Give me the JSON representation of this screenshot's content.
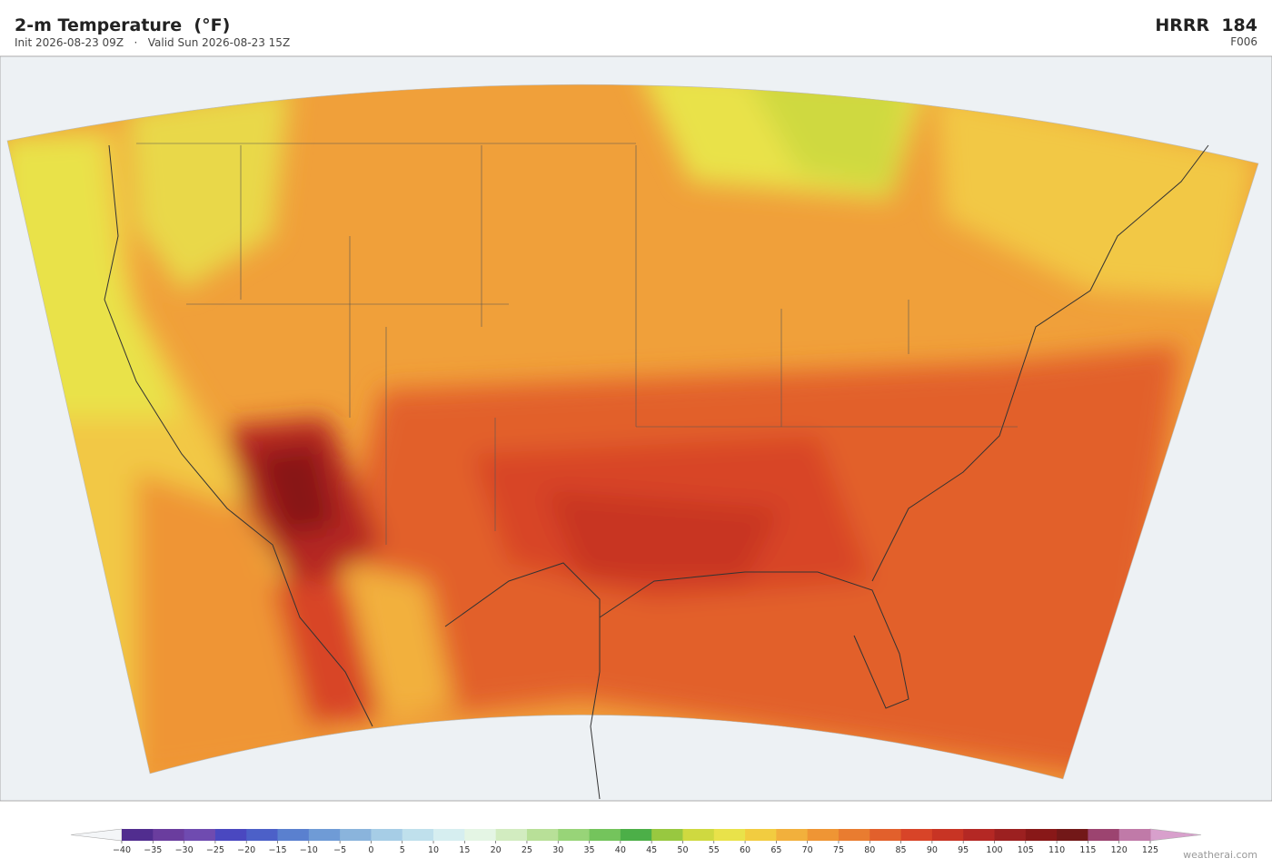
{
  "header": {
    "title": "2-m Temperature  (°F)",
    "subtitle": "Init 2026-08-23 09Z   ·   Valid Sun 2026-08-23 15Z",
    "model": "HRRR  184",
    "forecast_hour": "F006"
  },
  "colorbar": {
    "ticks": [
      {
        "value": -40,
        "label": "−40"
      },
      {
        "value": -35,
        "label": "−35"
      },
      {
        "value": -30,
        "label": "−30"
      },
      {
        "value": -25,
        "label": "−25"
      },
      {
        "value": -20,
        "label": "−20"
      },
      {
        "value": -15,
        "label": "−15"
      },
      {
        "value": -10,
        "label": "−10"
      },
      {
        "value": -5,
        "label": "−5"
      },
      0,
      5,
      10,
      15,
      20,
      25,
      30,
      35,
      40,
      45,
      50,
      55,
      60,
      65,
      70,
      75,
      80,
      85,
      90,
      95,
      100,
      105,
      110,
      115,
      120,
      125
    ],
    "colors": [
      "#512d8f",
      "#6a3d9e",
      "#6f4bb0",
      "#4a48c0",
      "#4c60c8",
      "#5a80cf",
      "#6f9bd6",
      "#8ab4dc",
      "#a6cde6",
      "#bfe0ec",
      "#d6eef0",
      "#e4f5e4",
      "#d2ecc0",
      "#b8e098",
      "#98d478",
      "#74c45c",
      "#4caf48",
      "#98c840",
      "#cfd940",
      "#e9e24a",
      "#f2cc40",
      "#f2b03c",
      "#ef9534",
      "#e97c30",
      "#e2602c",
      "#d84428",
      "#c83424",
      "#b42824",
      "#9c2020",
      "#881818",
      "#721818",
      "#9c4470",
      "#c07aa8"
    ],
    "under_color": "#f4f6f8",
    "over_color": "#d8a0cc"
  },
  "watermark": "weatherai.com"
}
